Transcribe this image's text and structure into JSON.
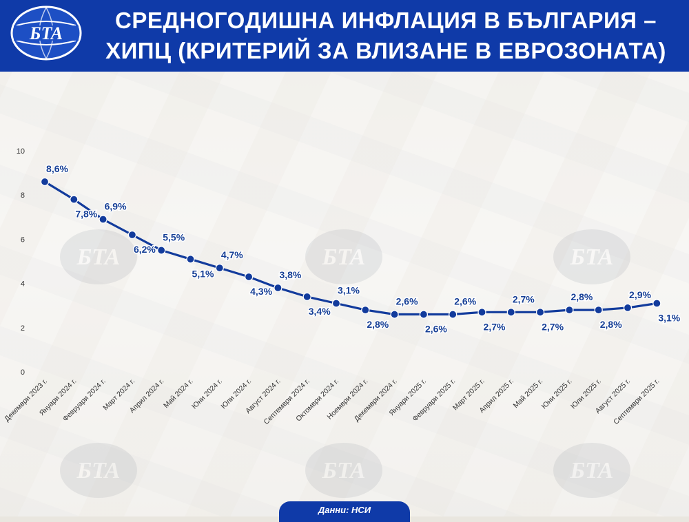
{
  "header": {
    "logo_text": "БТА",
    "title_line1": "СРЕДНОГОДИШНА ИНФЛАЦИЯ В БЪЛГАРИЯ –",
    "title_line2": "ХИПЦ (КРИТЕРИЙ ЗА ВЛИЗАНЕ В ЕВРОЗОНАТА)"
  },
  "footer": {
    "source": "Данни: НСИ"
  },
  "colors": {
    "brand_blue": "#0f3aa8",
    "line": "#123b9c",
    "label": "#163f96",
    "axis_text": "#333333"
  },
  "chart_data": {
    "type": "line",
    "title": "СРЕДНОГОДИШНА ИНФЛАЦИЯ В БЪЛГАРИЯ – ХИПЦ (КРИТЕРИЙ ЗА ВЛИЗАНЕ В ЕВРОЗОНАТА)",
    "categories": [
      "Декември 2023 г.",
      "Януари 2024 г.",
      "Февруари 2024 г.",
      "Март 2024 г.",
      "Април 2024 г.",
      "Май 2024 г.",
      "Юни 2024 г.",
      "Юли 2024 г.",
      "Август 2024 г.",
      "Септември 2024 г.",
      "Октомври 2024 г.",
      "Ноември 2024 г.",
      "Декември 2024 г.",
      "Януари 2025 г.",
      "Февруари 2025 г.",
      "Март 2025 г.",
      "Април 2025 г.",
      "Май 2025 г.",
      "Юни 2025 г.",
      "Юли 2025 г.",
      "Август 2025 г.",
      "Септември 2025 г."
    ],
    "values": [
      8.6,
      7.8,
      6.9,
      6.2,
      5.5,
      5.1,
      4.7,
      4.3,
      3.8,
      3.4,
      3.1,
      2.8,
      2.6,
      2.6,
      2.6,
      2.7,
      2.7,
      2.7,
      2.8,
      2.8,
      2.9,
      3.1
    ],
    "value_labels": [
      "8,6%",
      "7,8%",
      "6,9%",
      "6,2%",
      "5,5%",
      "5,1%",
      "4,7%",
      "4,3%",
      "3,8%",
      "3,4%",
      "3,1%",
      "2,8%",
      "2,6%",
      "2,6%",
      "2,6%",
      "2,7%",
      "2,7%",
      "2,7%",
      "2,8%",
      "2,8%",
      "2,9%",
      "3,1%"
    ],
    "label_position": [
      "above",
      "below",
      "above",
      "below",
      "above",
      "below",
      "above",
      "below",
      "above",
      "below",
      "above",
      "below",
      "above",
      "below",
      "above",
      "below",
      "above",
      "below",
      "above",
      "below",
      "above",
      "below"
    ],
    "y_ticks": [
      "0",
      "2",
      "4",
      "6",
      "8",
      "10"
    ],
    "ylim": [
      0,
      10
    ],
    "xlabel": "",
    "ylabel": "",
    "grid": false,
    "legend": "none"
  }
}
